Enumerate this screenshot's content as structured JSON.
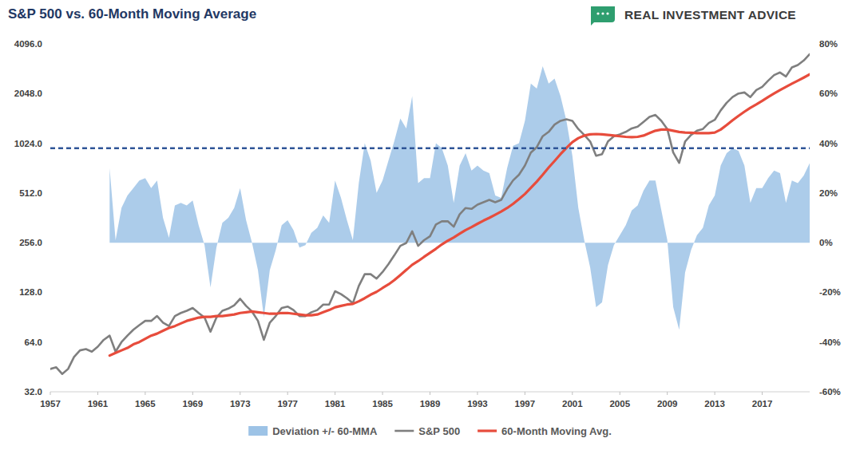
{
  "chart_data": {
    "type": "line",
    "title": "S&P 500 vs. 60-Month Moving Average",
    "annotations": [
      "REAL INVESTMENT ADVICE"
    ],
    "log": "y",
    "grid": false,
    "legend": "bottom",
    "xlim": [
      1957,
      2021
    ],
    "xticks": [
      1957,
      1961,
      1965,
      1969,
      1973,
      1977,
      1981,
      1985,
      1989,
      1993,
      1997,
      2001,
      2005,
      2009,
      2013,
      2017
    ],
    "ylim": [
      32,
      4096
    ],
    "yticks": [
      {
        "value": 32,
        "label": "32.0"
      },
      {
        "value": 64,
        "label": "64.0"
      },
      {
        "value": 128,
        "label": "128.0"
      },
      {
        "value": 256,
        "label": "256.0"
      },
      {
        "value": 512,
        "label": "512.0"
      },
      {
        "value": 1024,
        "label": "1024.0"
      },
      {
        "value": 2048,
        "label": "2048.0"
      },
      {
        "value": 4096,
        "label": "4096.0"
      }
    ],
    "y2lim": [
      -60,
      80
    ],
    "y2ticks": [
      {
        "value": -60,
        "label": "-60%"
      },
      {
        "value": -40,
        "label": "-40%"
      },
      {
        "value": -20,
        "label": "-20%"
      },
      {
        "value": 0,
        "label": "0%"
      },
      {
        "value": 20,
        "label": "20%"
      },
      {
        "value": 40,
        "label": "40%"
      },
      {
        "value": 60,
        "label": "60%"
      },
      {
        "value": 80,
        "label": "80%"
      }
    ],
    "reference_line": {
      "value": 38,
      "axis": "y2",
      "line_style": "dashed",
      "color": "#2f5597"
    },
    "x": [
      1957,
      1957.5,
      1958,
      1958.5,
      1959,
      1959.5,
      1960,
      1960.5,
      1961,
      1961.5,
      1962,
      1962.5,
      1963,
      1963.5,
      1964,
      1964.5,
      1965,
      1965.5,
      1966,
      1966.5,
      1967,
      1967.5,
      1968,
      1968.5,
      1969,
      1969.5,
      1970,
      1970.5,
      1971,
      1971.5,
      1972,
      1972.5,
      1973,
      1973.5,
      1974,
      1974.5,
      1975,
      1975.5,
      1976,
      1976.5,
      1977,
      1977.5,
      1978,
      1978.5,
      1979,
      1979.5,
      1980,
      1980.5,
      1981,
      1981.5,
      1982,
      1982.5,
      1983,
      1983.5,
      1984,
      1984.5,
      1985,
      1985.5,
      1986,
      1986.5,
      1987,
      1987.5,
      1988,
      1988.5,
      1989,
      1989.5,
      1990,
      1990.5,
      1991,
      1991.5,
      1992,
      1992.5,
      1993,
      1993.5,
      1994,
      1994.5,
      1995,
      1995.5,
      1996,
      1996.5,
      1997,
      1997.5,
      1998,
      1998.5,
      1999,
      1999.5,
      2000,
      2000.5,
      2001,
      2001.5,
      2002,
      2002.5,
      2003,
      2003.5,
      2004,
      2004.5,
      2005,
      2005.5,
      2006,
      2006.5,
      2007,
      2007.5,
      2008,
      2008.5,
      2009,
      2009.5,
      2010,
      2010.5,
      2011,
      2011.5,
      2012,
      2012.5,
      2013,
      2013.5,
      2014,
      2014.5,
      2015,
      2015.5,
      2016,
      2016.5,
      2017,
      2017.5,
      2018,
      2018.5,
      2019,
      2019.5,
      2020,
      2020.5,
      2021
    ],
    "series": [
      {
        "name": "Deviation +/- 60-MMA",
        "type": "area",
        "axis": "y2",
        "color": "#9dc3e6",
        "values": [
          null,
          null,
          null,
          null,
          null,
          null,
          null,
          null,
          null,
          null,
          30,
          1,
          14,
          19,
          22,
          25,
          26,
          22,
          25,
          10,
          2,
          15,
          16,
          15,
          17,
          7,
          -1,
          -18,
          -2,
          8,
          10,
          14,
          22,
          9,
          0,
          -11,
          -30,
          -11,
          -3,
          7,
          9,
          5,
          -2,
          -1,
          4,
          6,
          11,
          8,
          25,
          18,
          9,
          1,
          24,
          40,
          33,
          20,
          25,
          33,
          41,
          50,
          46,
          59,
          24,
          26,
          26,
          40,
          38,
          31,
          16,
          31,
          36,
          29,
          31,
          29,
          28,
          19,
          18,
          30,
          39,
          40,
          49,
          64,
          62,
          71,
          64,
          66,
          59,
          49,
          35,
          14,
          1,
          -10,
          -26,
          -24,
          -9,
          -1,
          3,
          7,
          13,
          15,
          21,
          25,
          25,
          13,
          1,
          -26,
          -35,
          -12,
          -3,
          3,
          6,
          15,
          19,
          31,
          36,
          38,
          37,
          31,
          16,
          22,
          22,
          26,
          29,
          28,
          16,
          25,
          24,
          27,
          32
        ]
      },
      {
        "name": "S&P 500",
        "type": "line",
        "color": "#7f7f7f",
        "values": [
          44,
          45,
          41,
          44,
          52,
          57,
          58,
          56,
          60,
          66,
          70,
          56,
          64,
          70,
          76,
          81,
          86,
          86,
          92,
          84,
          80,
          92,
          96,
          99,
          103,
          96,
          90,
          74,
          90,
          99,
          102,
          107,
          117,
          106,
          98,
          86,
          66,
          84,
          92,
          103,
          105,
          100,
          92,
          92,
          97,
          100,
          108,
          108,
          130,
          125,
          118,
          110,
          140,
          165,
          165,
          155,
          170,
          190,
          215,
          245,
          255,
          300,
          245,
          265,
          280,
          330,
          345,
          345,
          320,
          380,
          415,
          410,
          435,
          450,
          465,
          450,
          465,
          540,
          610,
          660,
          750,
          900,
          970,
          1130,
          1200,
          1330,
          1400,
          1430,
          1400,
          1250,
          1150,
          1050,
          860,
          880,
          1050,
          1130,
          1160,
          1200,
          1260,
          1290,
          1380,
          1480,
          1520,
          1400,
          1250,
          900,
          780,
          1050,
          1150,
          1220,
          1250,
          1360,
          1420,
          1620,
          1800,
          1950,
          2050,
          2080,
          1950,
          2150,
          2250,
          2450,
          2650,
          2750,
          2600,
          2950,
          3050,
          3250,
          3550
        ]
      },
      {
        "name": "60-Month Moving Avg.",
        "type": "line",
        "color": "#e74c3c",
        "values": [
          null,
          null,
          null,
          null,
          null,
          null,
          null,
          null,
          null,
          null,
          53,
          55,
          57,
          59,
          62,
          64,
          67,
          70,
          72,
          75,
          78,
          80,
          83,
          86,
          88,
          90,
          91,
          91,
          92,
          92,
          93,
          94,
          96,
          97,
          98,
          97,
          96,
          95,
          95,
          96,
          96,
          95,
          94,
          93,
          93,
          94,
          97,
          100,
          104,
          106,
          108,
          109,
          113,
          118,
          124,
          129,
          136,
          143,
          152,
          163,
          175,
          188,
          198,
          210,
          222,
          235,
          250,
          263,
          275,
          290,
          305,
          318,
          333,
          348,
          362,
          378,
          395,
          415,
          440,
          470,
          505,
          550,
          600,
          660,
          730,
          800,
          880,
          960,
          1040,
          1100,
          1140,
          1160,
          1165,
          1160,
          1150,
          1140,
          1130,
          1120,
          1115,
          1120,
          1140,
          1180,
          1220,
          1240,
          1240,
          1220,
          1200,
          1190,
          1185,
          1180,
          1180,
          1180,
          1190,
          1240,
          1320,
          1410,
          1500,
          1590,
          1680,
          1760,
          1850,
          1950,
          2050,
          2150,
          2250,
          2350,
          2450,
          2560,
          2680
        ]
      }
    ]
  }
}
